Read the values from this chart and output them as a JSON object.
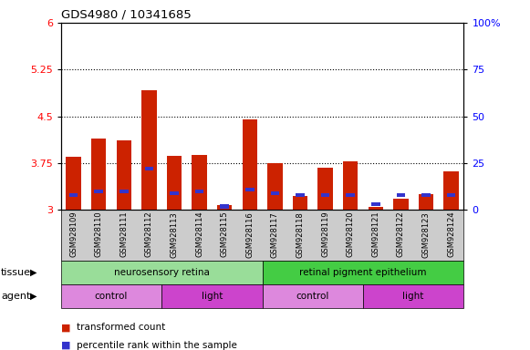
{
  "title": "GDS4980 / 10341685",
  "samples": [
    "GSM928109",
    "GSM928110",
    "GSM928111",
    "GSM928112",
    "GSM928113",
    "GSM928114",
    "GSM928115",
    "GSM928116",
    "GSM928117",
    "GSM928118",
    "GSM928119",
    "GSM928120",
    "GSM928121",
    "GSM928122",
    "GSM928123",
    "GSM928124"
  ],
  "red_values": [
    3.85,
    4.15,
    4.12,
    4.92,
    3.87,
    3.88,
    3.08,
    4.45,
    3.75,
    3.22,
    3.68,
    3.78,
    3.05,
    3.18,
    3.25,
    3.62
  ],
  "blue_values": [
    8,
    10,
    10,
    22,
    9,
    10,
    2,
    11,
    9,
    8,
    8,
    8,
    3,
    8,
    8,
    8
  ],
  "ymin": 3.0,
  "ymax": 6.0,
  "y2min": 0,
  "y2max": 100,
  "yticks": [
    3.0,
    3.75,
    4.5,
    5.25,
    6.0
  ],
  "ytick_labels": [
    "3",
    "3.75",
    "4.5",
    "5.25",
    "6"
  ],
  "y2ticks": [
    0,
    25,
    50,
    75,
    100
  ],
  "y2tick_labels": [
    "0",
    "25",
    "50",
    "75",
    "100%"
  ],
  "dotted_lines": [
    3.75,
    4.5,
    5.25
  ],
  "bar_color": "#cc2200",
  "blue_color": "#3333cc",
  "bg_color": "#cccccc",
  "plot_bg": "#ffffff",
  "tissue_groups": [
    {
      "label": "neurosensory retina",
      "start": 0,
      "end": 7,
      "color": "#99dd99"
    },
    {
      "label": "retinal pigment epithelium",
      "start": 8,
      "end": 15,
      "color": "#44cc44"
    }
  ],
  "agent_groups": [
    {
      "label": "control",
      "start": 0,
      "end": 3,
      "color": "#dd88dd"
    },
    {
      "label": "light",
      "start": 4,
      "end": 7,
      "color": "#cc44cc"
    },
    {
      "label": "control",
      "start": 8,
      "end": 11,
      "color": "#dd88dd"
    },
    {
      "label": "light",
      "start": 12,
      "end": 15,
      "color": "#cc44cc"
    }
  ],
  "legend_items": [
    {
      "label": "transformed count",
      "color": "#cc2200"
    },
    {
      "label": "percentile rank within the sample",
      "color": "#3333cc"
    }
  ],
  "tissue_label": "tissue",
  "agent_label": "agent"
}
